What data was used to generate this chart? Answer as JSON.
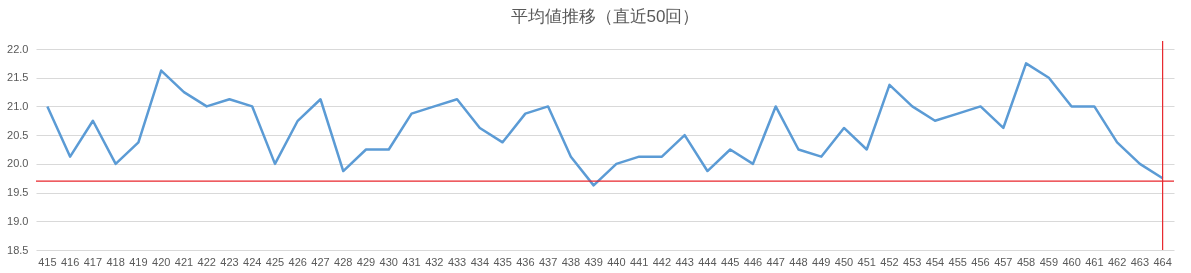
{
  "chart_data": {
    "type": "line",
    "title": "平均値推移（直近50回）",
    "categories": [
      "415",
      "416",
      "417",
      "418",
      "419",
      "420",
      "421",
      "422",
      "423",
      "424",
      "425",
      "426",
      "427",
      "428",
      "429",
      "430",
      "431",
      "432",
      "433",
      "434",
      "435",
      "436",
      "437",
      "438",
      "439",
      "440",
      "441",
      "442",
      "443",
      "444",
      "445",
      "446",
      "447",
      "448",
      "449",
      "450",
      "451",
      "452",
      "453",
      "454",
      "455",
      "456",
      "457",
      "458",
      "459",
      "460",
      "461",
      "462",
      "463",
      "464"
    ],
    "series": [
      {
        "color": "#5b9bd5",
        "values": [
          21.0,
          20.125,
          20.75,
          20.0,
          20.375,
          21.625,
          21.25,
          21.0,
          21.125,
          21.0,
          20.0,
          20.75,
          21.125,
          19.875,
          20.25,
          20.25,
          20.875,
          21.0,
          21.125,
          20.625,
          20.375,
          20.875,
          21.0,
          20.125,
          19.625,
          20.0,
          20.125,
          20.125,
          20.5,
          19.875,
          20.25,
          20.0,
          21.0,
          20.25,
          20.125,
          20.625,
          20.25,
          21.375,
          21.0,
          20.75,
          20.875,
          21.0,
          20.625,
          21.75,
          21.5,
          21.0,
          21.0,
          20.375,
          20.0,
          19.75
        ]
      }
    ],
    "ylim": [
      18.5,
      22
    ],
    "yticks": [
      {
        "value": 18.5,
        "label": "18.5"
      },
      {
        "value": 19,
        "label": "19.0"
      },
      {
        "value": 19.5,
        "label": "19.5"
      },
      {
        "value": 20,
        "label": "20.0"
      },
      {
        "value": 20.5,
        "label": "20.5"
      },
      {
        "value": 21,
        "label": "21.0"
      },
      {
        "value": 21.5,
        "label": "21.5"
      },
      {
        "value": 22,
        "label": "22.0"
      }
    ],
    "grid": "y",
    "marker": "none",
    "line_style": "solid",
    "ref_lines": [
      {
        "axis": "y",
        "value": 19.7,
        "color": "#e8262c"
      },
      {
        "axis": "x",
        "value": "464",
        "color": "#e8262c"
      }
    ]
  }
}
